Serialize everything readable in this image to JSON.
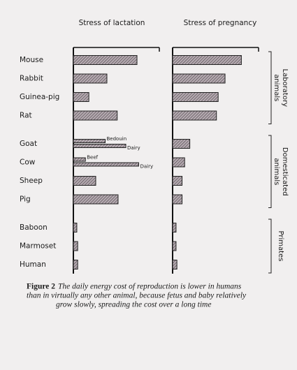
{
  "chart_data": [
    {
      "type": "bar",
      "orientation": "horizontal",
      "title": "Stress of lactation",
      "categories": [
        "Mouse",
        "Rabbit",
        "Guinea-pig",
        "Rat",
        "Goat",
        "Cow",
        "Sheep",
        "Pig",
        "Baboon",
        "Marmoset",
        "Human"
      ],
      "groups": [
        {
          "label": "Laboratory animals",
          "count": 4
        },
        {
          "label": "Domesticated animals",
          "count": 4
        },
        {
          "label": "Primates",
          "count": 3
        }
      ],
      "xlim": [
        0,
        100
      ],
      "color": "#8c8088",
      "series": [
        {
          "values": [
            74,
            39,
            18,
            51,
            null,
            null,
            26,
            52,
            4,
            5,
            5
          ]
        },
        {
          "values": [
            null,
            null,
            null,
            null,
            37,
            14,
            null,
            null,
            null,
            null,
            null
          ],
          "bar_labels": [
            null,
            null,
            null,
            null,
            "Bedouin",
            "Beef",
            null,
            null,
            null,
            null,
            null
          ]
        },
        {
          "values": [
            null,
            null,
            null,
            null,
            61,
            76,
            null,
            null,
            null,
            null,
            null
          ],
          "bar_labels": [
            null,
            null,
            null,
            null,
            "Dairy",
            "Dairy",
            null,
            null,
            null,
            null,
            null
          ]
        }
      ]
    },
    {
      "type": "bar",
      "orientation": "horizontal",
      "title": "Stress of pregnancy",
      "xlim": [
        0,
        100
      ],
      "color": "#8c8088",
      "series": [
        {
          "values": [
            80,
            61,
            53,
            51,
            20,
            14,
            11,
            11,
            4,
            4,
            5
          ]
        }
      ]
    }
  ],
  "caption": {
    "label": "Figure 2",
    "lines": [
      "The daily energy cost of reproduction is lower in humans",
      "than in virtually any other animal, because fetus and baby relatively",
      "grow slowly, spreading the cost over a long time"
    ]
  }
}
